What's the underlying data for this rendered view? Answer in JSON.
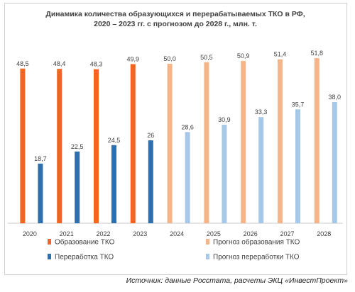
{
  "colors": {
    "formation": "#f26522",
    "processing": "#2e6fad",
    "forecast_formation": "#f5b58a",
    "forecast_processing": "#a7c8e6",
    "axis": "#c9c9c9",
    "text": "#404040"
  },
  "chart_data": {
    "type": "bar",
    "title": [
      "Динамика количества образующихся и перерабатываемых ТКО в РФ,",
      "2020 – 2023 гг. с прогнозом до 2028 г., млн. т."
    ],
    "categories": [
      "2020",
      "2021",
      "2022",
      "2023",
      "2024",
      "2025",
      "2026",
      "2027",
      "2028"
    ],
    "series": [
      {
        "name": "Образование ТКО",
        "key": "formation",
        "values": [
          48.5,
          48.4,
          48.3,
          49.9,
          null,
          null,
          null,
          null,
          null
        ],
        "labels": [
          "48,5",
          "48,4",
          "48,3",
          "49,9",
          "",
          "",
          "",
          "",
          ""
        ]
      },
      {
        "name": "Переработка ТКО",
        "key": "processing",
        "values": [
          18.7,
          22.5,
          24.5,
          26,
          null,
          null,
          null,
          null,
          null
        ],
        "labels": [
          "18,7",
          "22,5",
          "24,5",
          "26",
          "",
          "",
          "",
          "",
          ""
        ]
      },
      {
        "name": "Прогноз образования ТКО",
        "key": "forecast_formation",
        "values": [
          null,
          null,
          null,
          null,
          50.0,
          50.5,
          50.9,
          51.4,
          51.8
        ],
        "labels": [
          "",
          "",
          "",
          "",
          "50,0",
          "50,5",
          "50,9",
          "51,4",
          "51,8"
        ]
      },
      {
        "name": "Прогноз переработки ТКО",
        "key": "forecast_processing",
        "values": [
          null,
          null,
          null,
          null,
          28.6,
          30.9,
          33.3,
          35.7,
          38.0
        ],
        "labels": [
          "",
          "",
          "",
          "",
          "28,6",
          "30,9",
          "33,3",
          "35,7",
          "38,0"
        ]
      }
    ],
    "ylim": [
      0,
      52
    ],
    "grid": false,
    "legend_position": "bottom"
  },
  "source": "Источник: данные Росстата, расчеты ЭКЦ «ИнвестПроект»"
}
